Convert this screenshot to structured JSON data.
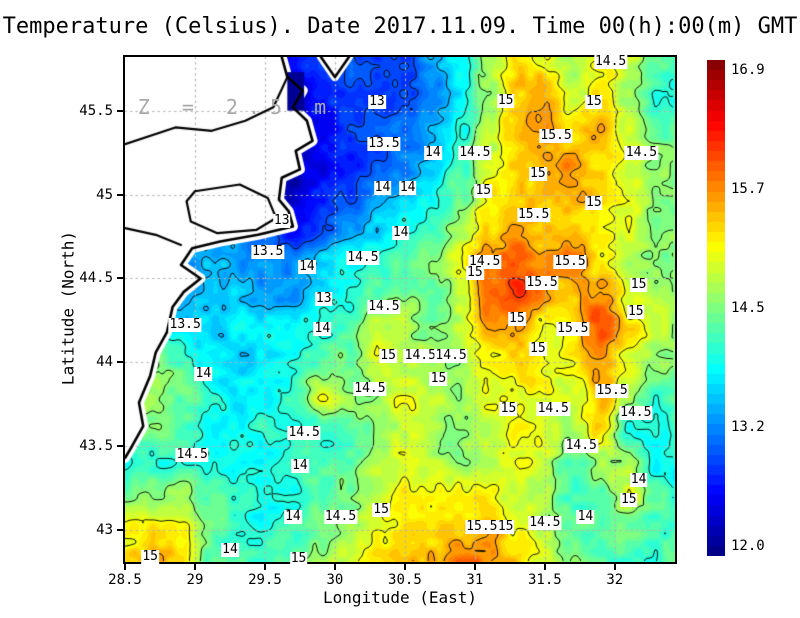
{
  "title": "Temperature (Celsius). Date 2017.11.09. Time 00(h):00(m) GMT",
  "chart_data": {
    "type": "heatmap",
    "title": "Temperature (Celsius). Date 2017.11.09. Time 00(h):00(m) GMT",
    "xlabel": "Longitude (East)",
    "ylabel": "Latitude (North)",
    "xlim": [
      28.5,
      32.43
    ],
    "ylim": [
      42.81,
      45.82
    ],
    "xticks": [
      [
        28.5,
        "28.5"
      ],
      [
        29,
        "29"
      ],
      [
        29.5,
        "29.5"
      ],
      [
        30,
        "30"
      ],
      [
        30.5,
        "30.5"
      ],
      [
        31,
        "31"
      ],
      [
        31.5,
        "31.5"
      ],
      [
        32,
        "32"
      ]
    ],
    "yticks": [
      [
        43,
        "43"
      ],
      [
        43.5,
        "43.5"
      ],
      [
        44,
        "44"
      ],
      [
        44.5,
        "44.5"
      ],
      [
        45,
        "45"
      ],
      [
        45.5,
        "45.5"
      ]
    ],
    "grid": true,
    "annotation": {
      "text": "Z = 2.5 m",
      "lon": 29.3,
      "lat": 45.52
    },
    "colorbar": {
      "min": 12.0,
      "max": 16.9,
      "step": 0.1,
      "ticks": [
        [
          16.9,
          "16.9"
        ],
        [
          15.7,
          "15.7"
        ],
        [
          14.5,
          "14.5"
        ],
        [
          13.2,
          "13.2"
        ],
        [
          12.0,
          "12.0"
        ]
      ],
      "colormap": "jet"
    },
    "contour_levels": [
      13,
      13.5,
      14,
      14.5,
      15,
      15.5,
      16
    ],
    "colors": {
      "land": "#ffffff",
      "coast": "#000000",
      "contour": "#000000",
      "graticule": "#b4b4b4",
      "annotation": "#a9a9a9",
      "frame": "#000000"
    },
    "temperature_grid": {
      "lon_start": 28.5,
      "lon_step": 0.2,
      "lat_start": 45.8,
      "lat_step": -0.2,
      "values": [
        [
          13.0,
          13.0,
          13.0,
          13.0,
          12.9,
          12.9,
          12.8,
          13.0,
          12.9,
          12.9,
          13.0,
          13.4,
          13.9,
          14.6,
          15.1,
          15.0,
          14.6,
          15.0,
          14.8,
          14.2,
          14.0
        ],
        [
          13.0,
          13.0,
          13.0,
          13.0,
          12.9,
          12.8,
          12.2,
          12.8,
          12.9,
          12.8,
          13.0,
          13.3,
          13.8,
          14.5,
          15.3,
          15.4,
          14.8,
          15.2,
          14.6,
          14.1,
          13.9
        ],
        [
          13.0,
          13.0,
          13.0,
          13.0,
          12.9,
          12.8,
          12.5,
          12.7,
          12.9,
          13.0,
          13.1,
          13.4,
          13.9,
          14.7,
          15.4,
          15.6,
          15.2,
          15.5,
          14.8,
          14.3,
          14.2
        ],
        [
          13.0,
          13.0,
          13.0,
          13.0,
          12.9,
          12.8,
          12.4,
          12.6,
          12.8,
          13.0,
          13.2,
          13.6,
          14.1,
          14.8,
          15.3,
          15.5,
          15.6,
          15.3,
          14.9,
          14.5,
          14.3
        ],
        [
          13.2,
          13.2,
          13.2,
          13.2,
          13.0,
          12.8,
          12.3,
          12.7,
          13.0,
          13.3,
          13.5,
          13.9,
          14.3,
          15.0,
          15.2,
          15.3,
          15.5,
          15.2,
          14.9,
          14.6,
          14.4
        ],
        [
          13.4,
          13.4,
          13.4,
          13.4,
          13.3,
          13.0,
          12.6,
          13.0,
          13.3,
          13.6,
          13.9,
          14.2,
          14.6,
          15.2,
          15.5,
          15.4,
          15.3,
          15.1,
          14.8,
          14.6,
          14.5
        ],
        [
          13.5,
          13.5,
          13.4,
          13.5,
          13.5,
          13.2,
          13.3,
          13.6,
          13.9,
          14.1,
          14.3,
          14.5,
          14.9,
          15.6,
          15.7,
          15.6,
          15.8,
          15.0,
          14.7,
          14.5,
          14.4
        ],
        [
          13.6,
          13.5,
          13.3,
          13.5,
          13.6,
          13.5,
          13.4,
          13.7,
          14.0,
          14.3,
          14.5,
          14.4,
          14.8,
          15.8,
          16.0,
          15.5,
          15.3,
          15.6,
          15.0,
          14.7,
          14.5
        ],
        [
          13.8,
          14.0,
          13.6,
          13.6,
          13.7,
          13.8,
          13.9,
          14.0,
          14.2,
          14.9,
          14.6,
          14.3,
          14.7,
          15.5,
          15.6,
          15.0,
          15.2,
          15.9,
          15.2,
          14.8,
          14.6
        ],
        [
          14.2,
          14.5,
          14.2,
          13.8,
          13.6,
          13.8,
          14.0,
          14.2,
          14.4,
          14.9,
          14.8,
          14.6,
          14.7,
          15.1,
          15.3,
          15.0,
          15.1,
          15.5,
          14.9,
          14.6,
          14.4
        ],
        [
          14.4,
          14.6,
          14.3,
          14.0,
          13.8,
          13.9,
          14.0,
          14.9,
          14.5,
          14.6,
          14.9,
          14.7,
          14.6,
          14.9,
          15.1,
          15.0,
          14.8,
          15.4,
          14.6,
          14.1,
          14.3
        ],
        [
          14.3,
          14.4,
          14.2,
          14.0,
          13.9,
          14.0,
          14.1,
          14.2,
          14.3,
          14.5,
          14.8,
          14.6,
          14.5,
          14.7,
          15.0,
          14.9,
          14.6,
          15.2,
          14.0,
          13.9,
          14.2
        ],
        [
          13.9,
          14.0,
          14.1,
          14.0,
          13.9,
          13.9,
          14.0,
          14.1,
          14.2,
          14.6,
          14.9,
          14.7,
          14.5,
          14.6,
          14.9,
          14.7,
          14.2,
          14.6,
          14.5,
          13.8,
          14.0
        ],
        [
          14.4,
          14.5,
          14.6,
          14.2,
          14.0,
          13.9,
          14.0,
          14.2,
          14.4,
          14.8,
          15.0,
          14.9,
          15.0,
          15.1,
          14.9,
          14.6,
          14.2,
          14.3,
          14.9,
          14.2,
          14.0
        ],
        [
          15.0,
          15.2,
          15.1,
          14.4,
          14.1,
          14.0,
          14.1,
          14.4,
          14.6,
          15.0,
          15.2,
          15.1,
          15.3,
          15.4,
          15.1,
          14.7,
          14.4,
          14.2,
          14.3,
          14.1,
          14.2
        ],
        [
          15.2,
          15.4,
          15.2,
          14.4,
          14.2,
          14.1,
          14.3,
          14.6,
          14.9,
          15.2,
          15.4,
          15.5,
          15.8,
          15.7,
          15.3,
          14.8,
          14.5,
          14.3,
          14.2,
          14.1,
          14.3
        ]
      ]
    },
    "contour_labels": [
      [
        30.3,
        45.55,
        "13"
      ],
      [
        31.22,
        45.56,
        "15"
      ],
      [
        31.85,
        45.55,
        "15"
      ],
      [
        31.97,
        45.79,
        "14.5"
      ],
      [
        32.19,
        45.25,
        "14.5"
      ],
      [
        30.35,
        45.3,
        "13.5"
      ],
      [
        30.7,
        45.25,
        "14"
      ],
      [
        31.0,
        45.25,
        "14.5"
      ],
      [
        31.58,
        45.35,
        "15.5"
      ],
      [
        31.45,
        45.12,
        "15"
      ],
      [
        30.34,
        45.04,
        "14"
      ],
      [
        30.52,
        45.04,
        "14"
      ],
      [
        31.06,
        45.02,
        "15"
      ],
      [
        31.85,
        44.95,
        "15"
      ],
      [
        31.42,
        44.88,
        "15.5"
      ],
      [
        29.62,
        44.84,
        "13"
      ],
      [
        29.52,
        44.66,
        "13.5"
      ],
      [
        29.8,
        44.57,
        "14"
      ],
      [
        30.47,
        44.77,
        "14"
      ],
      [
        30.2,
        44.62,
        "14.5"
      ],
      [
        31.07,
        44.6,
        "14.5"
      ],
      [
        31.0,
        44.53,
        "15"
      ],
      [
        31.68,
        44.6,
        "15.5"
      ],
      [
        29.92,
        44.38,
        "13"
      ],
      [
        28.93,
        44.22,
        "13.5"
      ],
      [
        29.91,
        44.2,
        "14"
      ],
      [
        30.35,
        44.33,
        "14.5"
      ],
      [
        31.48,
        44.47,
        "15.5"
      ],
      [
        32.17,
        44.46,
        "15"
      ],
      [
        32.15,
        44.3,
        "15"
      ],
      [
        31.7,
        44.2,
        "15.5"
      ],
      [
        31.3,
        44.26,
        "15"
      ],
      [
        30.38,
        44.04,
        "15"
      ],
      [
        30.61,
        44.04,
        "14.5"
      ],
      [
        30.83,
        44.04,
        "14.5"
      ],
      [
        31.45,
        44.08,
        "15"
      ],
      [
        29.06,
        43.93,
        "14"
      ],
      [
        30.25,
        43.84,
        "14.5"
      ],
      [
        30.74,
        43.9,
        "15"
      ],
      [
        29.78,
        43.58,
        "14.5"
      ],
      [
        31.24,
        43.72,
        "15"
      ],
      [
        31.56,
        43.72,
        "14.5"
      ],
      [
        31.98,
        43.83,
        "15.5"
      ],
      [
        32.15,
        43.7,
        "14.5"
      ],
      [
        31.76,
        43.5,
        "14.5"
      ],
      [
        29.75,
        43.38,
        "14"
      ],
      [
        28.98,
        43.45,
        "14.5"
      ],
      [
        30.33,
        43.12,
        "15"
      ],
      [
        29.7,
        43.08,
        "14"
      ],
      [
        30.04,
        43.08,
        "14.5"
      ],
      [
        31.05,
        43.02,
        "15.5"
      ],
      [
        31.22,
        43.02,
        "15"
      ],
      [
        31.5,
        43.04,
        "14.5"
      ],
      [
        32.17,
        43.3,
        "14"
      ],
      [
        32.1,
        43.18,
        "15"
      ],
      [
        31.79,
        43.08,
        "14"
      ],
      [
        28.68,
        42.84,
        "15"
      ],
      [
        29.25,
        42.88,
        "14"
      ],
      [
        29.74,
        42.83,
        "15"
      ]
    ],
    "coastline": [
      [
        29.62,
        45.82
      ],
      [
        29.66,
        45.7
      ],
      [
        29.77,
        45.62
      ],
      [
        29.7,
        45.52
      ],
      [
        29.8,
        45.44
      ],
      [
        29.84,
        45.32
      ],
      [
        29.72,
        45.26
      ],
      [
        29.75,
        45.15
      ],
      [
        29.62,
        45.1
      ],
      [
        29.6,
        44.97
      ],
      [
        29.67,
        44.9
      ],
      [
        29.7,
        44.81
      ],
      [
        29.45,
        44.76
      ],
      [
        29.18,
        44.72
      ],
      [
        28.98,
        44.68
      ],
      [
        28.9,
        44.58
      ],
      [
        29.04,
        44.5
      ],
      [
        28.92,
        44.42
      ],
      [
        28.84,
        44.33
      ],
      [
        28.8,
        44.18
      ],
      [
        28.72,
        44.06
      ],
      [
        28.68,
        43.92
      ],
      [
        28.6,
        43.76
      ],
      [
        28.63,
        43.62
      ],
      [
        28.55,
        43.5
      ],
      [
        28.5,
        43.43
      ]
    ],
    "coast_close_via": [
      [
        28.5,
        45.82
      ]
    ],
    "land_notch": [
      [
        29.9,
        45.82
      ],
      [
        30.0,
        45.7
      ],
      [
        30.1,
        45.82
      ]
    ],
    "inland_lines": [
      [
        [
          29.0,
          45.02
        ],
        [
          29.32,
          45.06
        ],
        [
          29.52,
          44.98
        ],
        [
          29.58,
          44.86
        ],
        [
          29.44,
          44.79
        ],
        [
          29.16,
          44.77
        ],
        [
          28.97,
          44.84
        ],
        [
          28.94,
          44.96
        ],
        [
          29.0,
          45.02
        ]
      ],
      [
        [
          28.5,
          45.3
        ],
        [
          28.86,
          45.4
        ],
        [
          29.12,
          45.38
        ],
        [
          29.36,
          45.44
        ],
        [
          29.56,
          45.52
        ],
        [
          29.66,
          45.7
        ]
      ],
      [
        [
          28.5,
          44.8
        ],
        [
          28.72,
          44.76
        ],
        [
          28.9,
          44.7
        ]
      ]
    ],
    "cold_patch": {
      "lon0": 29.66,
      "lat0": 45.5,
      "lon1": 29.78,
      "lat1": 45.73,
      "temp": 12.1
    }
  }
}
